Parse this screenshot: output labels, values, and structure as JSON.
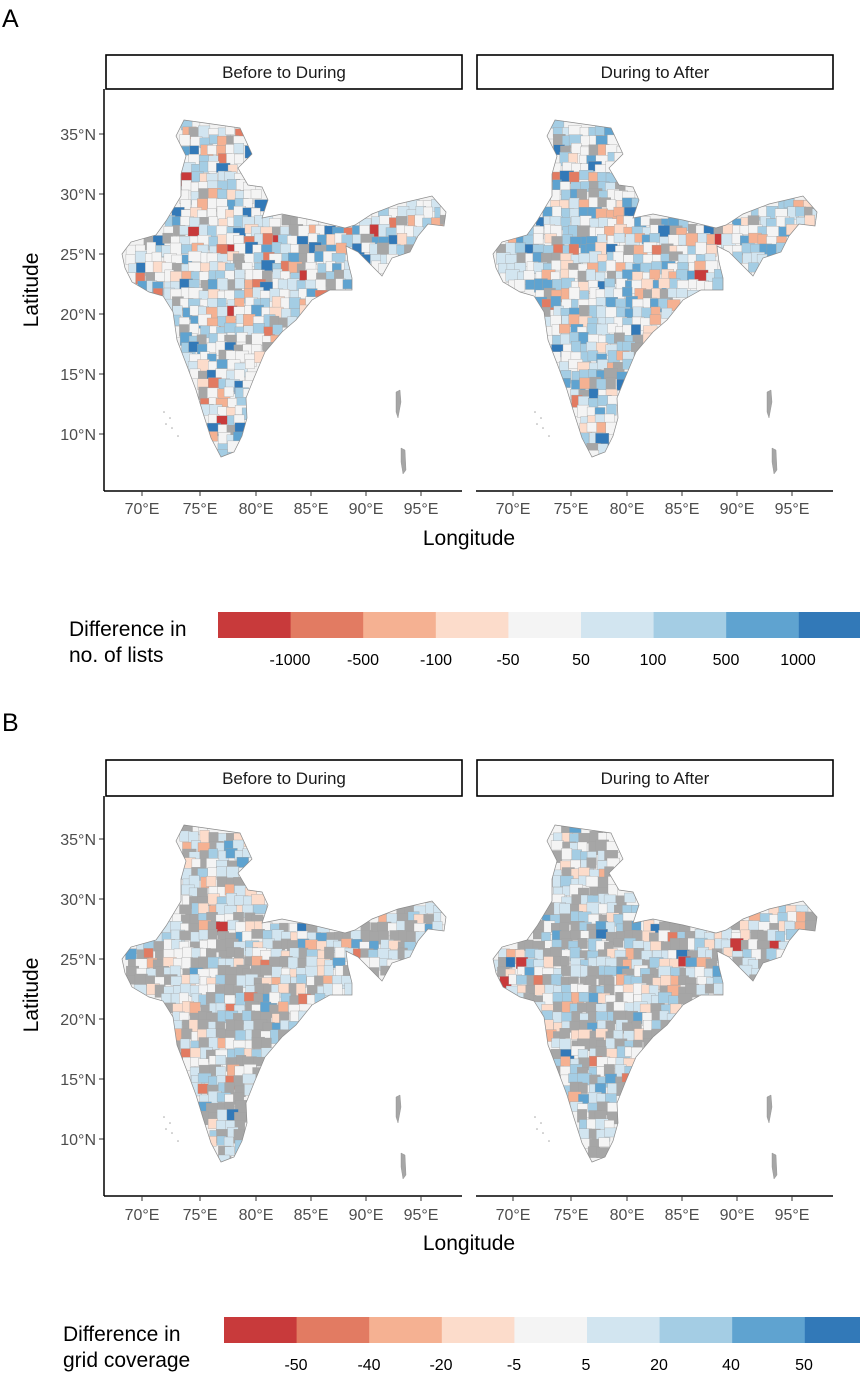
{
  "panels": [
    {
      "label": "A",
      "facets": [
        "Before to During",
        "During to After"
      ],
      "y_axis_label": "Latitude",
      "x_axis_label": "Longitude",
      "y_ticks": [
        "35°N",
        "30°N",
        "25°N",
        "20°N",
        "15°N",
        "10°N"
      ],
      "x_ticks": [
        "70°E",
        "75°E",
        "80°E",
        "85°E",
        "90°E",
        "95°E"
      ],
      "legend": {
        "title_line1": "Difference in",
        "title_line2": "no. of lists",
        "colors": [
          "#c83a3b",
          "#e27b62",
          "#f5b192",
          "#fcdccb",
          "#f4f4f4",
          "#d2e5f0",
          "#a4cde4",
          "#5fa3d0",
          "#3279b8"
        ],
        "labels": [
          "-1000",
          "-500",
          "-100",
          "-50",
          "50",
          "100",
          "500",
          "1000"
        ]
      }
    },
    {
      "label": "B",
      "facets": [
        "Before to During",
        "During to After"
      ],
      "y_axis_label": "Latitude",
      "x_axis_label": "Longitude",
      "y_ticks": [
        "35°N",
        "30°N",
        "25°N",
        "20°N",
        "15°N",
        "10°N"
      ],
      "x_ticks": [
        "70°E",
        "75°E",
        "80°E",
        "85°E",
        "90°E",
        "95°E"
      ],
      "legend": {
        "title_line1": "Difference in",
        "title_line2": "grid coverage",
        "colors": [
          "#c83a3b",
          "#e27b62",
          "#f5b192",
          "#fcdccb",
          "#f4f4f4",
          "#d2e5f0",
          "#a4cde4",
          "#5fa3d0",
          "#3279b8"
        ],
        "labels": [
          "-50",
          "-40",
          "-20",
          "-5",
          "5",
          "20",
          "40",
          "50"
        ]
      }
    }
  ],
  "colors": {
    "no_data": "#a6a6a6",
    "district_border": "#9a9a9a",
    "frame": "#000000"
  }
}
